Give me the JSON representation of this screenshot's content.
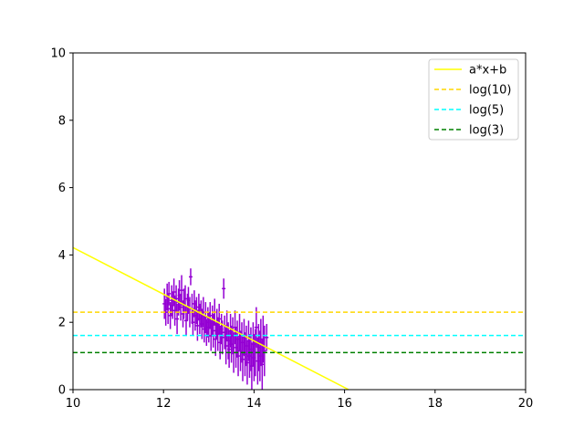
{
  "chart_data": {
    "type": "scatter",
    "title": "",
    "xlabel": "",
    "ylabel": "",
    "xlim": [
      10,
      20
    ],
    "ylim": [
      0,
      10
    ],
    "xticks": [
      "10",
      "12",
      "14",
      "16",
      "18",
      "20"
    ],
    "yticks": [
      "0",
      "2",
      "4",
      "6",
      "8",
      "10"
    ],
    "grid": false,
    "legend_position": "top-right",
    "colors": {
      "fit": "#ffff00",
      "log10": "#ffd700",
      "log5": "#00ffff",
      "log3": "#008000",
      "points": "#9400d3"
    },
    "series": [
      {
        "name": "a*x+b",
        "type": "line",
        "style": "solid",
        "color": "#ffff00",
        "x": [
          10,
          16.09
        ],
        "y": [
          4.22,
          0
        ]
      },
      {
        "name": "log(10)",
        "type": "hline",
        "style": "dashed",
        "color": "#ffd700",
        "y": 2.3
      },
      {
        "name": "log(5)",
        "type": "hline",
        "style": "dashed",
        "color": "#00ffff",
        "y": 1.61
      },
      {
        "name": "log(3)",
        "type": "hline",
        "style": "dashed",
        "color": "#008000",
        "y": 1.1
      }
    ],
    "errorbar_points": {
      "color": "#9400d3",
      "points": [
        [
          12.02,
          2.55,
          0.45,
          0.04
        ],
        [
          12.05,
          2.3,
          0.4,
          0.04
        ],
        [
          12.08,
          2.75,
          0.4,
          0.04
        ],
        [
          12.1,
          2.4,
          0.45,
          0.04
        ],
        [
          12.12,
          2.85,
          0.35,
          0.04
        ],
        [
          12.15,
          2.2,
          0.4,
          0.04
        ],
        [
          12.18,
          2.65,
          0.45,
          0.04
        ],
        [
          12.2,
          2.5,
          0.4,
          0.04
        ],
        [
          12.23,
          2.9,
          0.4,
          0.04
        ],
        [
          12.25,
          2.35,
          0.45,
          0.04
        ],
        [
          12.28,
          2.7,
          0.4,
          0.04
        ],
        [
          12.3,
          2.1,
          0.45,
          0.04
        ],
        [
          12.33,
          2.6,
          0.4,
          0.04
        ],
        [
          12.35,
          2.8,
          0.45,
          0.04
        ],
        [
          12.38,
          2.45,
          0.4,
          0.04
        ],
        [
          12.4,
          2.95,
          0.45,
          0.04
        ],
        [
          12.43,
          2.25,
          0.4,
          0.04
        ],
        [
          12.45,
          2.55,
          0.45,
          0.04
        ],
        [
          12.48,
          2.7,
          0.4,
          0.04
        ],
        [
          12.5,
          2.05,
          0.45,
          0.04
        ],
        [
          12.53,
          2.45,
          0.4,
          0.04
        ],
        [
          12.55,
          2.65,
          0.4,
          0.04
        ],
        [
          12.58,
          2.3,
          0.45,
          0.04
        ],
        [
          12.6,
          3.35,
          0.25,
          0.04
        ],
        [
          12.63,
          2.4,
          0.45,
          0.04
        ],
        [
          12.65,
          2.0,
          0.4,
          0.04
        ],
        [
          12.68,
          2.55,
          0.4,
          0.04
        ],
        [
          12.7,
          2.2,
          0.45,
          0.04
        ],
        [
          12.73,
          2.35,
          0.4,
          0.04
        ],
        [
          12.75,
          1.9,
          0.45,
          0.04
        ],
        [
          12.78,
          2.45,
          0.4,
          0.04
        ],
        [
          12.8,
          2.1,
          0.45,
          0.04
        ],
        [
          12.83,
          2.25,
          0.4,
          0.04
        ],
        [
          12.85,
          1.95,
          0.45,
          0.04
        ],
        [
          12.88,
          2.3,
          0.45,
          0.04
        ],
        [
          12.9,
          1.8,
          0.4,
          0.04
        ],
        [
          12.93,
          2.15,
          0.45,
          0.04
        ],
        [
          12.95,
          1.7,
          0.4,
          0.04
        ],
        [
          12.98,
          2.0,
          0.45,
          0.04
        ],
        [
          13.0,
          1.85,
          0.45,
          0.04
        ],
        [
          13.03,
          2.2,
          0.4,
          0.04
        ],
        [
          13.05,
          1.6,
          0.45,
          0.04
        ],
        [
          13.08,
          2.05,
          0.45,
          0.04
        ],
        [
          13.1,
          1.75,
          0.5,
          0.04
        ],
        [
          13.13,
          2.3,
          0.4,
          0.04
        ],
        [
          13.15,
          1.5,
          0.5,
          0.04
        ],
        [
          13.18,
          1.95,
          0.45,
          0.04
        ],
        [
          13.2,
          1.65,
          0.5,
          0.04
        ],
        [
          13.23,
          2.1,
          0.45,
          0.04
        ],
        [
          13.25,
          1.4,
          0.5,
          0.04
        ],
        [
          13.28,
          1.8,
          0.45,
          0.04
        ],
        [
          13.3,
          1.55,
          0.5,
          0.04
        ],
        [
          13.33,
          3.0,
          0.3,
          0.04
        ],
        [
          13.35,
          1.7,
          0.5,
          0.04
        ],
        [
          13.38,
          1.3,
          0.55,
          0.04
        ],
        [
          13.4,
          1.9,
          0.45,
          0.04
        ],
        [
          13.43,
          1.45,
          0.55,
          0.04
        ],
        [
          13.45,
          1.2,
          0.55,
          0.04
        ],
        [
          13.48,
          1.75,
          0.5,
          0.04
        ],
        [
          13.5,
          1.35,
          0.55,
          0.04
        ],
        [
          13.53,
          1.6,
          0.55,
          0.04
        ],
        [
          13.55,
          1.1,
          0.6,
          0.04
        ],
        [
          13.58,
          1.85,
          0.5,
          0.04
        ],
        [
          13.6,
          1.25,
          0.6,
          0.04
        ],
        [
          13.63,
          1.5,
          0.55,
          0.04
        ],
        [
          13.65,
          1.0,
          0.6,
          0.04
        ],
        [
          13.68,
          1.7,
          0.55,
          0.04
        ],
        [
          13.7,
          1.15,
          0.6,
          0.04
        ],
        [
          13.73,
          1.4,
          0.6,
          0.04
        ],
        [
          13.75,
          0.9,
          0.65,
          0.04
        ],
        [
          13.78,
          1.55,
          0.55,
          0.04
        ],
        [
          13.8,
          1.05,
          0.65,
          0.04
        ],
        [
          13.83,
          1.3,
          0.6,
          0.04
        ],
        [
          13.85,
          0.8,
          0.65,
          0.04
        ],
        [
          13.88,
          1.45,
          0.6,
          0.04
        ],
        [
          13.9,
          1.0,
          0.65,
          0.04
        ],
        [
          13.93,
          1.2,
          0.65,
          0.04
        ],
        [
          13.95,
          0.7,
          0.7,
          0.04
        ],
        [
          13.98,
          1.35,
          0.65,
          0.04
        ],
        [
          14.0,
          0.95,
          0.7,
          0.04
        ],
        [
          14.03,
          1.1,
          0.7,
          0.04
        ],
        [
          14.05,
          1.85,
          0.6,
          0.04
        ],
        [
          14.08,
          0.85,
          0.7,
          0.04
        ],
        [
          14.1,
          1.25,
          0.7,
          0.04
        ],
        [
          14.13,
          1.0,
          0.75,
          0.04
        ],
        [
          14.15,
          1.4,
          0.7,
          0.04
        ],
        [
          14.18,
          0.75,
          0.75,
          0.04
        ],
        [
          14.2,
          1.5,
          0.7,
          0.04
        ],
        [
          14.23,
          1.15,
          0.75,
          0.04
        ],
        [
          14.28,
          1.55,
          0.4,
          0.04
        ]
      ]
    }
  }
}
